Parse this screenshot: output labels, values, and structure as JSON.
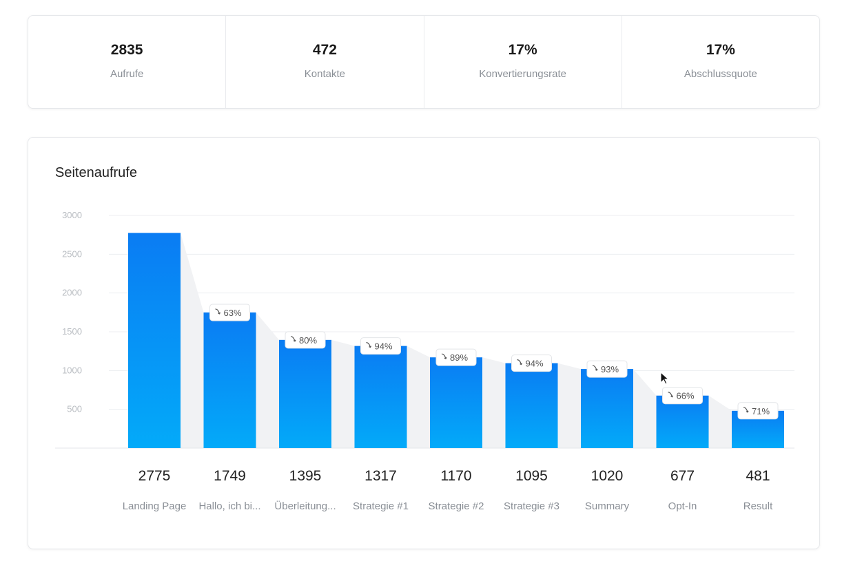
{
  "stats": [
    {
      "value": "2835",
      "label": "Aufrufe"
    },
    {
      "value": "472",
      "label": "Kontakte"
    },
    {
      "value": "17%",
      "label": "Konvertierungsrate"
    },
    {
      "value": "17%",
      "label": "Abschlussquote"
    }
  ],
  "chart_title": "Seitenaufrufe",
  "colors": {
    "bar_top": "#0a7cf3",
    "bar_bottom": "#03aaf9",
    "grid": "#eceef1",
    "funnel_shade": "#f1f2f4",
    "tick_text": "#b9bdc2",
    "value_text": "#222222",
    "category_text": "#8a8f96"
  },
  "chart_data": {
    "type": "bar",
    "title": "Seitenaufrufe",
    "categories": [
      "Landing Page",
      "Hallo, ich bi...",
      "Überleitung...",
      "Strategie #1",
      "Strategie #2",
      "Strategie #3",
      "Summary",
      "Opt-In",
      "Result"
    ],
    "values": [
      2775,
      1749,
      1395,
      1317,
      1170,
      1095,
      1020,
      677,
      481
    ],
    "value_labels": [
      "2775",
      "1749",
      "1395",
      "1317",
      "1170",
      "1095",
      "1020",
      "677",
      "481"
    ],
    "retention_labels": [
      "",
      "63%",
      "80%",
      "94%",
      "89%",
      "94%",
      "93%",
      "66%",
      "71%"
    ],
    "yticks": [
      500,
      1000,
      1500,
      2000,
      2500,
      3000
    ],
    "ylim": [
      0,
      3000
    ],
    "xlabel": "",
    "ylabel": "",
    "grid": true,
    "legend": "none"
  }
}
